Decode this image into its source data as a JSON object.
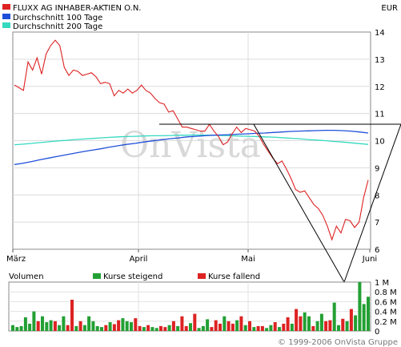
{
  "chart_data": {
    "type": "line",
    "currency": "EUR",
    "watermark": "OnVista",
    "copyright": "© 1999-2006 OnVista Gruppe",
    "x_tick_labels": [
      "März",
      "April",
      "Mai",
      "Juni"
    ],
    "price_axis": {
      "min": 6,
      "max": 14,
      "ticks": [
        6,
        7,
        8,
        9,
        10,
        11,
        12,
        13,
        14
      ]
    },
    "series": [
      {
        "name": "FLUXX AG INHABER-AKTIEN O.N.",
        "color": "#dd2222",
        "values": [
          12.05,
          11.95,
          11.85,
          12.9,
          12.6,
          13.05,
          12.45,
          13.2,
          13.5,
          13.7,
          13.5,
          12.7,
          12.4,
          12.6,
          12.55,
          12.4,
          12.45,
          12.5,
          12.35,
          12.1,
          12.15,
          12.1,
          11.65,
          11.85,
          11.75,
          11.9,
          11.75,
          11.85,
          12.05,
          11.85,
          11.75,
          11.55,
          11.4,
          11.35,
          11.05,
          11.1,
          10.8,
          10.5,
          10.5,
          10.45,
          10.4,
          10.35,
          10.35,
          10.6,
          10.35,
          10.15,
          9.85,
          9.95,
          10.25,
          10.5,
          10.3,
          10.45,
          10.4,
          10.35,
          10.15,
          9.85,
          9.6,
          9.35,
          9.15,
          9.25,
          8.95,
          8.6,
          8.2,
          8.1,
          8.15,
          7.9,
          7.65,
          7.5,
          7.25,
          6.85,
          6.35,
          6.85,
          6.6,
          7.1,
          7.05,
          6.8,
          7.0,
          7.9,
          8.55
        ]
      },
      {
        "name": "Durchschnitt 100 Tage",
        "color": "#1f4fd9",
        "values": [
          9.12,
          9.17,
          9.23,
          9.3,
          9.36,
          9.42,
          9.48,
          9.54,
          9.6,
          9.65,
          9.7,
          9.76,
          9.81,
          9.86,
          9.9,
          9.95,
          9.99,
          10.03,
          10.07,
          10.1,
          10.14,
          10.16,
          10.18,
          10.2,
          10.21,
          10.22,
          10.24,
          10.25,
          10.27,
          10.28,
          10.3,
          10.32,
          10.34,
          10.35,
          10.36,
          10.37,
          10.38,
          10.38,
          10.37,
          10.35,
          10.32,
          10.28
        ]
      },
      {
        "name": "Durchschnitt 200 Tage",
        "color": "#35d9c0",
        "values": [
          9.85,
          9.87,
          9.9,
          9.93,
          9.96,
          9.99,
          10.01,
          10.04,
          10.06,
          10.08,
          10.1,
          10.12,
          10.14,
          10.15,
          10.16,
          10.17,
          10.18,
          10.18,
          10.19,
          10.2,
          10.2,
          10.21,
          10.2,
          10.2,
          10.19,
          10.18,
          10.17,
          10.16,
          10.15,
          10.14,
          10.13,
          10.11,
          10.09,
          10.07,
          10.04,
          10.02,
          10.0,
          9.97,
          9.95,
          9.92,
          9.89,
          9.86
        ]
      }
    ],
    "volume": {
      "label": "Volumen",
      "legend_up": "Kurse steigend",
      "legend_down": "Kurse fallend",
      "color_up": "#22a033",
      "color_down": "#dd2222",
      "axis_labels": [
        "0",
        "0.2 M",
        "0.4 M",
        "0.6 M",
        "0.8 M",
        "1 M"
      ],
      "max": 1.0,
      "values": [
        0.12,
        0.08,
        0.1,
        0.28,
        0.15,
        0.4,
        0.2,
        0.3,
        0.18,
        0.22,
        0.2,
        0.12,
        0.3,
        0.12,
        0.64,
        0.1,
        0.2,
        0.12,
        0.3,
        0.2,
        0.1,
        0.08,
        0.12,
        0.18,
        0.14,
        0.22,
        0.26,
        0.2,
        0.18,
        0.26,
        0.1,
        0.08,
        0.12,
        0.08,
        0.06,
        0.1,
        0.08,
        0.12,
        0.2,
        0.1,
        0.3,
        0.1,
        0.16,
        0.35,
        0.06,
        0.1,
        0.24,
        0.08,
        0.22,
        0.15,
        0.3,
        0.2,
        0.15,
        0.22,
        0.3,
        0.12,
        0.2,
        0.08,
        0.1,
        0.1,
        0.06,
        0.12,
        0.18,
        0.08,
        0.15,
        0.28,
        0.15,
        0.45,
        0.3,
        0.38,
        0.3,
        0.1,
        0.2,
        0.35,
        0.2,
        0.22,
        0.58,
        0.12,
        0.25,
        0.2,
        0.45,
        0.32,
        1.0,
        0.55,
        0.7
      ],
      "up": [
        1,
        1,
        1,
        1,
        1,
        1,
        0,
        1,
        1,
        1,
        0,
        1,
        1,
        0,
        0,
        1,
        0,
        1,
        1,
        1,
        1,
        1,
        0,
        1,
        0,
        0,
        1,
        1,
        1,
        0,
        0,
        1,
        0,
        1,
        1,
        0,
        0,
        1,
        0,
        1,
        0,
        0,
        1,
        0,
        1,
        1,
        1,
        0,
        0,
        0,
        1,
        0,
        0,
        1,
        0,
        1,
        0,
        1,
        0,
        0,
        1,
        1,
        0,
        1,
        0,
        0,
        1,
        0,
        0,
        1,
        1,
        0,
        1,
        1,
        0,
        0,
        1,
        1,
        0,
        1,
        0,
        1,
        1,
        1,
        1
      ]
    }
  }
}
